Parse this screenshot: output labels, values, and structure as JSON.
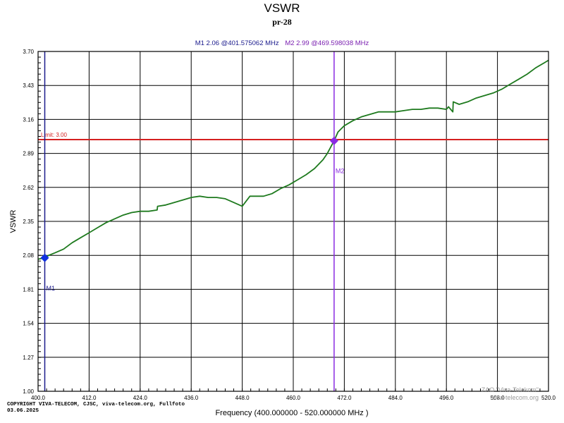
{
  "chart_data": {
    "type": "line",
    "title": "VSWR",
    "subtitle": "pr-28",
    "xlabel": "Frequency (400.000000 - 520.000000 MHz )",
    "ylabel": "VSWR",
    "xlim": [
      400,
      520
    ],
    "ylim": [
      1.0,
      3.7
    ],
    "x_ticks": [
      400,
      412,
      424,
      436,
      448,
      460,
      472,
      484,
      496,
      508,
      520
    ],
    "x_tick_labels": [
      "400.0",
      "412.0",
      "424.0",
      "436.0",
      "448.0",
      "460.0",
      "472.0",
      "484.0",
      "496.0",
      "508.0",
      "520.0"
    ],
    "y_ticks": [
      1.0,
      1.27,
      1.54,
      1.81,
      2.08,
      2.35,
      2.62,
      2.89,
      3.16,
      3.43,
      3.7
    ],
    "y_tick_labels": [
      "1.00",
      "1.27",
      "1.54",
      "1.81",
      "2.08",
      "2.35",
      "2.62",
      "2.89",
      "3.16",
      "3.43",
      "3.70"
    ],
    "grid": true,
    "series": [
      {
        "color": "#1e7a1e",
        "x": [
          400.0,
          401.5,
          402.5,
          404.0,
          406.0,
          408.0,
          410.0,
          412.0,
          414.0,
          416.0,
          418.0,
          420.0,
          422.0,
          424.0,
          426.0,
          428.0,
          428.1,
          430.0,
          432.0,
          434.0,
          436.0,
          438.0,
          440.0,
          442.0,
          444.0,
          446.0,
          448.0,
          449.8,
          449.9,
          451.0,
          453.0,
          455.0,
          457.0,
          459.0,
          461.0,
          463.0,
          465.0,
          467.0,
          468.0,
          469.6,
          470.5,
          472.0,
          474.0,
          476.0,
          478.0,
          480.0,
          482.0,
          484.0,
          486.0,
          488.0,
          490.0,
          492.0,
          494.0,
          496.0,
          496.5,
          497.5,
          497.6,
          499.0,
          501.0,
          503.0,
          505.0,
          507.0,
          509.0,
          511.0,
          513.0,
          515.0,
          517.0,
          519.0,
          520.0
        ],
        "y": [
          2.05,
          2.06,
          2.08,
          2.1,
          2.13,
          2.18,
          2.22,
          2.26,
          2.3,
          2.34,
          2.37,
          2.4,
          2.42,
          2.43,
          2.43,
          2.44,
          2.47,
          2.48,
          2.5,
          2.52,
          2.54,
          2.55,
          2.54,
          2.54,
          2.53,
          2.5,
          2.47,
          2.55,
          2.55,
          2.55,
          2.55,
          2.57,
          2.61,
          2.64,
          2.68,
          2.72,
          2.77,
          2.84,
          2.89,
          2.99,
          3.06,
          3.11,
          3.15,
          3.18,
          3.2,
          3.22,
          3.22,
          3.22,
          3.23,
          3.24,
          3.24,
          3.25,
          3.25,
          3.24,
          3.26,
          3.22,
          3.3,
          3.28,
          3.3,
          3.33,
          3.35,
          3.37,
          3.4,
          3.44,
          3.48,
          3.52,
          3.57,
          3.61,
          3.63
        ]
      }
    ],
    "limit": {
      "value": 3.0,
      "label": "Limit: 3.00",
      "color": "#d42020"
    },
    "markers": [
      {
        "label": "M1",
        "x": 401.575062,
        "y": 2.06,
        "color": "#1030e0",
        "line_color": "#1a1a8c",
        "readout": "M1  2.06 @401.575062 MHz"
      },
      {
        "label": "M2",
        "x": 469.598038,
        "y": 2.99,
        "color": "#8a2be2",
        "line_color": "#8a2be2",
        "readout": "M2  2.99 @469.598038 MHz"
      }
    ]
  },
  "copyright_line1": "COPYRIGHT VIVA-TELECOM, CJSC, viva-telecom.org, Fullfoto",
  "copyright_line2": "03.06.2025",
  "watermark_line1": "ZAO \"Viva-Telekom\"",
  "watermark_line2": "viva-telecom.org"
}
